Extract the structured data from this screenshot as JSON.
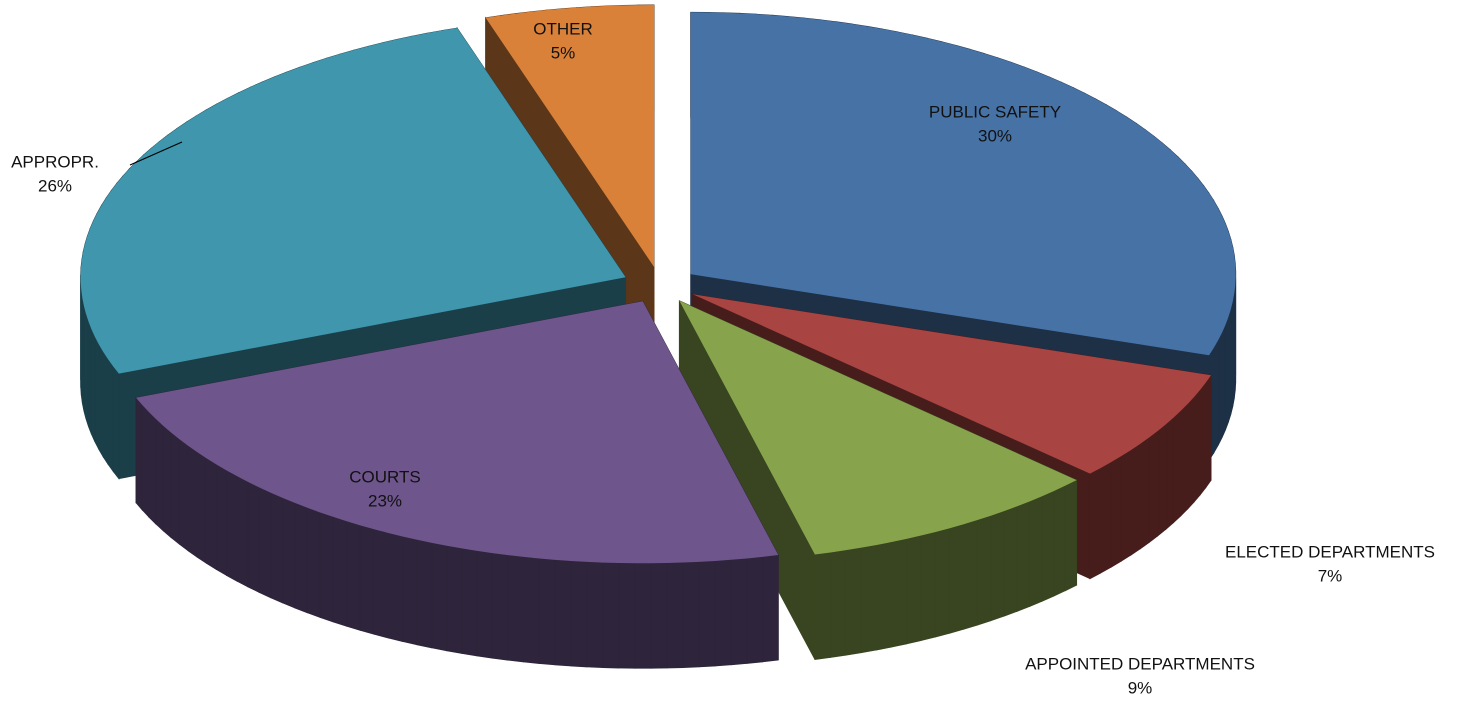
{
  "chart_data": {
    "type": "pie",
    "categories": [
      "PUBLIC SAFETY",
      "ELECTED DEPARTMENTS",
      "APPOINTED DEPARTMENTS",
      "COURTS",
      "APPROPR.",
      "OTHER"
    ],
    "values": [
      30,
      7,
      9,
      23,
      26,
      5
    ],
    "value_labels": [
      "30%",
      "7%",
      "9%",
      "23%",
      "26%",
      "5%"
    ],
    "colors": [
      "#4672a6",
      "#a84442",
      "#87a44c",
      "#6e558c",
      "#3f96ad",
      "#d98139"
    ]
  }
}
